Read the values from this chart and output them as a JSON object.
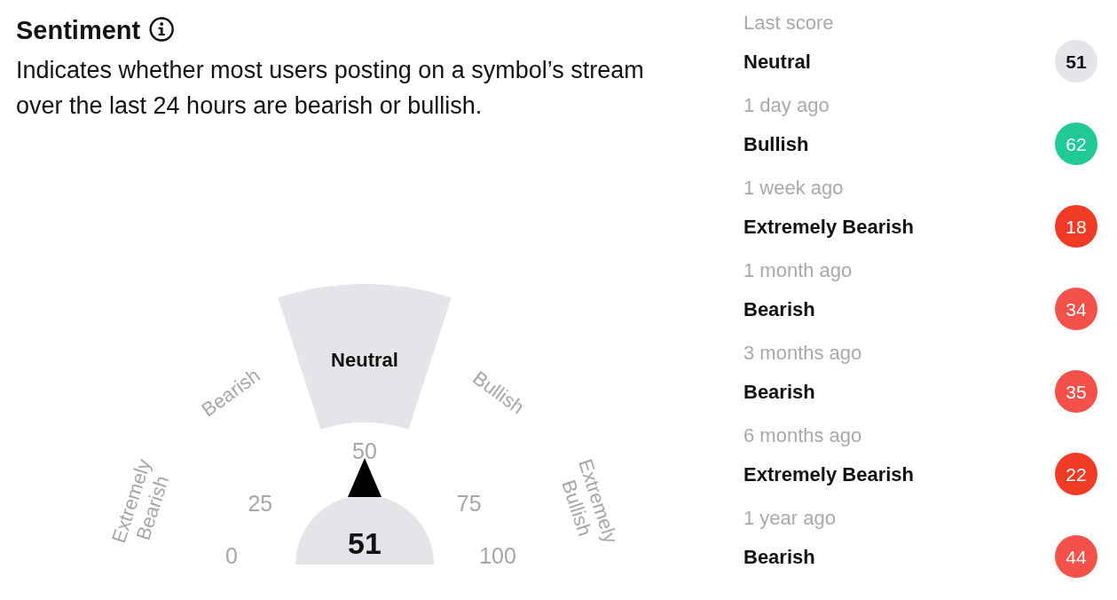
{
  "chart_data": [
    {
      "type": "other",
      "title": "Sentiment",
      "subtitle": "Indicates whether most users posting on a symbol’s stream over the last 24 hours are bearish or bullish.",
      "categories": [
        "Extremely Bearish",
        "Bearish",
        "Neutral",
        "Bullish",
        "Extremely Bullish"
      ],
      "values": [
        null,
        null,
        51,
        null,
        null
      ],
      "data_labels": true,
      "color": "#e4e4e9",
      "annotations": [
        "0",
        "25",
        "50",
        "75",
        "100"
      ]
    },
    {
      "type": "other",
      "categories": [
        "Neutral",
        "Bullish",
        "Extremely Bearish",
        "Bearish",
        "Bearish",
        "Extremely Bearish",
        "Bearish"
      ],
      "values": [
        51,
        62,
        18,
        34,
        35,
        22,
        44
      ],
      "data_labels": true,
      "colors": [
        "#e4e4e9",
        "#21c994",
        "#f23b26",
        "#f5514b",
        "#f5514b",
        "#f23b26",
        "#f5514b"
      ],
      "annotations": [
        "Last score",
        "1 day ago",
        "1 week ago",
        "1 month ago",
        "3 months ago",
        "6 months ago",
        "1 year ago"
      ]
    }
  ]
}
